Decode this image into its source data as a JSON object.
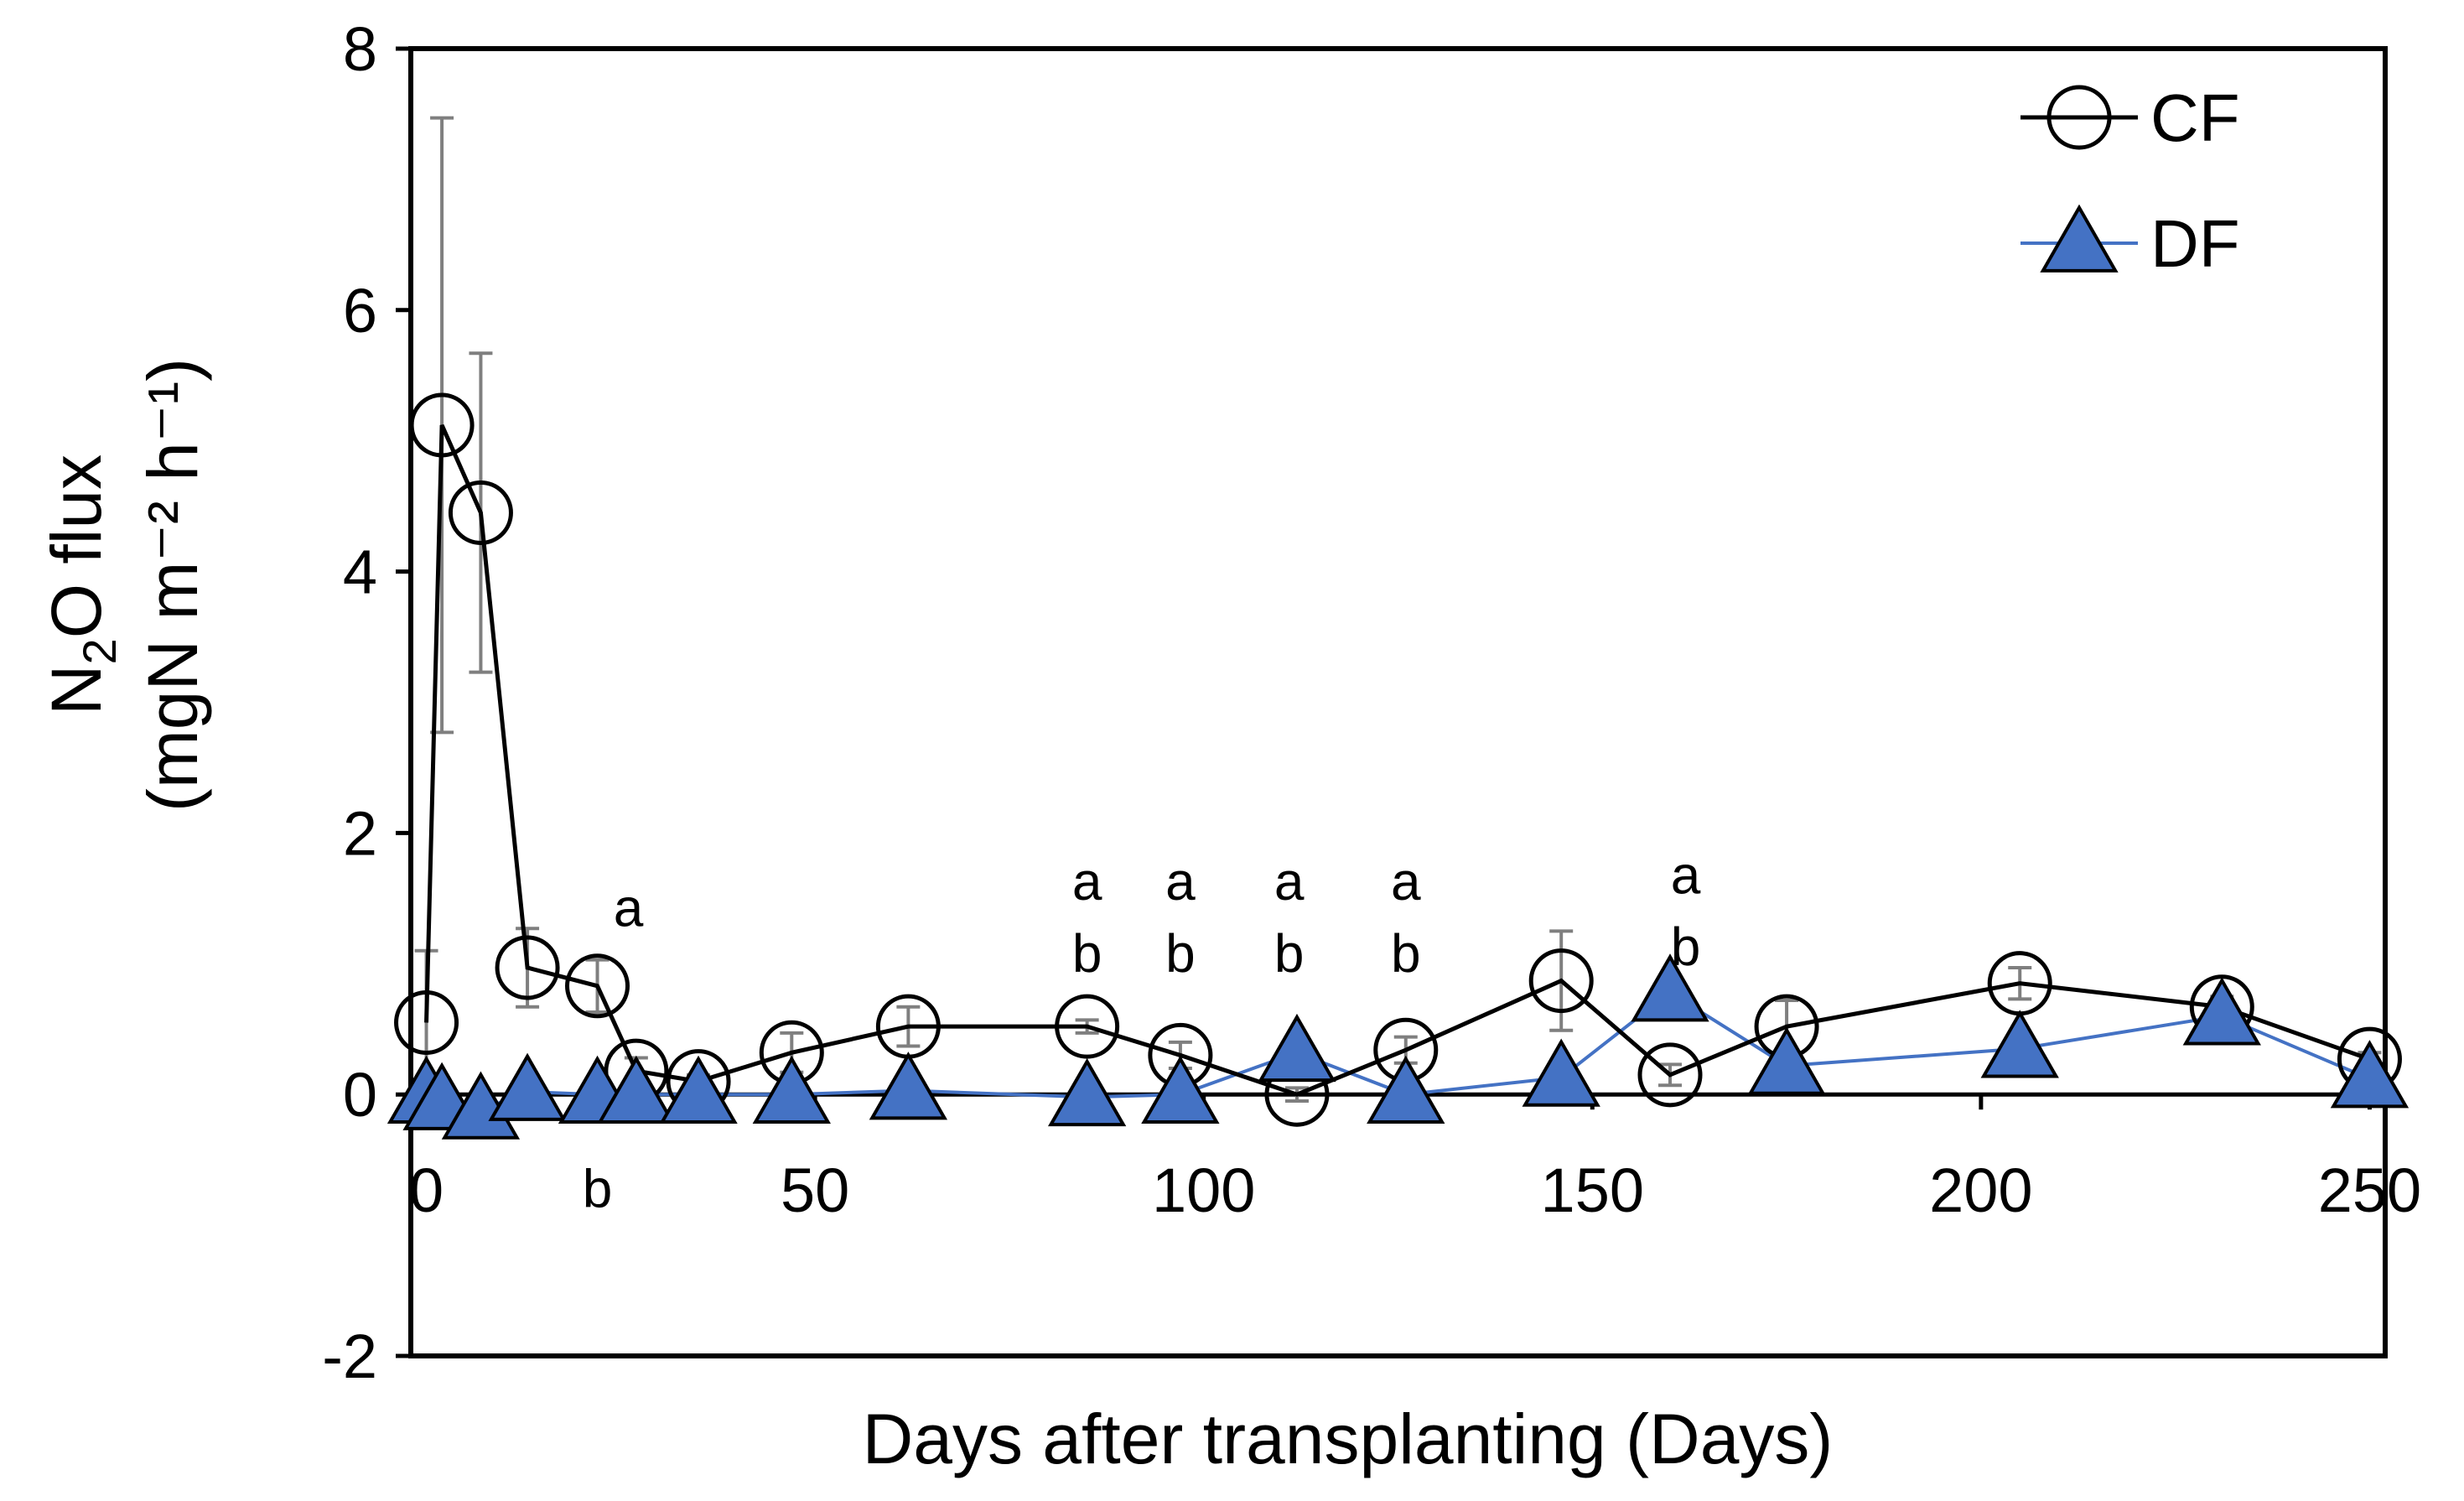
{
  "chart_data": {
    "type": "line",
    "title": "",
    "xlabel": "Days after transplanting (Days)",
    "ylabel_line1": "N",
    "ylabel_sub": "2",
    "ylabel_line1_rest": "O flux",
    "ylabel_line2": "(mgN m⁻² h⁻¹)",
    "xlim": [
      -2,
      252
    ],
    "ylim": [
      -2,
      8
    ],
    "x_ticks": [
      0,
      50,
      100,
      150,
      200,
      250
    ],
    "y_ticks": [
      -2,
      0,
      2,
      4,
      6,
      8
    ],
    "legend_position": "top-right",
    "series": [
      {
        "name": "CF",
        "color": "#000000",
        "marker": "open-circle",
        "x": [
          0,
          2,
          7,
          13,
          22,
          27,
          35,
          47,
          62,
          85,
          97,
          112,
          126,
          146,
          160,
          175,
          205,
          231,
          250
        ],
        "y": [
          0.55,
          5.12,
          4.45,
          0.97,
          0.83,
          0.18,
          0.1,
          0.32,
          0.52,
          0.52,
          0.3,
          0.0,
          0.34,
          0.87,
          0.15,
          0.52,
          0.85,
          0.67,
          0.27
        ],
        "err": [
          0.55,
          2.35,
          1.22,
          0.3,
          0.2,
          0.1,
          0.05,
          0.15,
          0.15,
          0.05,
          0.1,
          0.05,
          0.1,
          0.38,
          0.08,
          0.2,
          0.12,
          0.08,
          0.05
        ]
      },
      {
        "name": "DF",
        "color": "#4472C4",
        "marker": "filled-triangle",
        "x": [
          0,
          2,
          7,
          13,
          22,
          27,
          35,
          47,
          62,
          85,
          97,
          112,
          126,
          146,
          160,
          175,
          205,
          231,
          250
        ],
        "y": [
          0.0,
          -0.05,
          -0.12,
          0.02,
          0.0,
          0.0,
          0.0,
          0.0,
          0.03,
          -0.02,
          0.0,
          0.32,
          0.0,
          0.13,
          0.78,
          0.22,
          0.35,
          0.6,
          0.12
        ]
      }
    ],
    "significance_labels": [
      {
        "x": 26,
        "y": 1.43,
        "text": "a"
      },
      {
        "x": 22,
        "y": -0.72,
        "text": "b"
      },
      {
        "x": 85,
        "y": 1.63,
        "text": "a"
      },
      {
        "x": 85,
        "y": 1.08,
        "text": "b"
      },
      {
        "x": 97,
        "y": 1.63,
        "text": "a"
      },
      {
        "x": 97,
        "y": 1.08,
        "text": "b"
      },
      {
        "x": 111,
        "y": 1.63,
        "text": "a"
      },
      {
        "x": 111,
        "y": 1.08,
        "text": "b"
      },
      {
        "x": 126,
        "y": 1.63,
        "text": "a"
      },
      {
        "x": 126,
        "y": 1.08,
        "text": "b"
      },
      {
        "x": 162,
        "y": 1.68,
        "text": "a"
      },
      {
        "x": 162,
        "y": 1.13,
        "text": "b"
      }
    ]
  }
}
